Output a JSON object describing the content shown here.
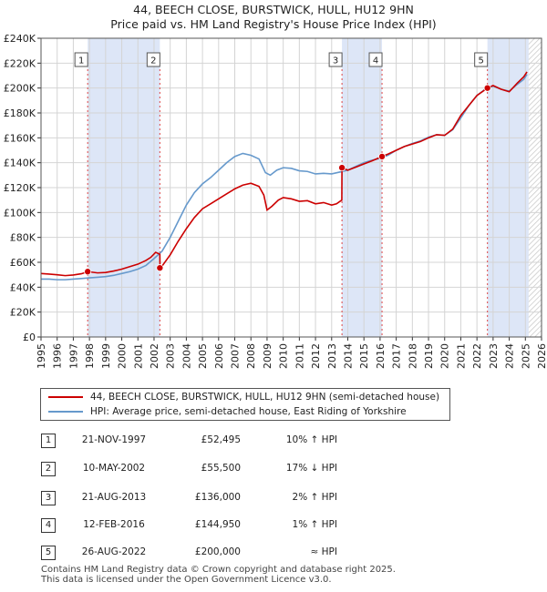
{
  "chart_data": {
    "type": "line",
    "title": "44, BEECH CLOSE, BURSTWICK, HULL, HU12 9HN",
    "subtitle": "Price paid vs. HM Land Registry's House Price Index (HPI)",
    "xlim": [
      1995,
      2026
    ],
    "ylim": [
      0,
      240000
    ],
    "x_ticks": [
      1995,
      1996,
      1997,
      1998,
      1999,
      2000,
      2001,
      2002,
      2003,
      2004,
      2005,
      2006,
      2007,
      2008,
      2009,
      2010,
      2011,
      2012,
      2013,
      2014,
      2015,
      2016,
      2017,
      2018,
      2019,
      2020,
      2021,
      2022,
      2023,
      2024,
      2025,
      2026
    ],
    "y_ticks": [
      {
        "value": 0,
        "label": "£0"
      },
      {
        "value": 20000,
        "label": "£20K"
      },
      {
        "value": 40000,
        "label": "£40K"
      },
      {
        "value": 60000,
        "label": "£60K"
      },
      {
        "value": 80000,
        "label": "£80K"
      },
      {
        "value": 100000,
        "label": "£100K"
      },
      {
        "value": 120000,
        "label": "£120K"
      },
      {
        "value": 140000,
        "label": "£140K"
      },
      {
        "value": 160000,
        "label": "£160K"
      },
      {
        "value": 180000,
        "label": "£180K"
      },
      {
        "value": 200000,
        "label": "£200K"
      },
      {
        "value": 220000,
        "label": "£220K"
      },
      {
        "value": 240000,
        "label": "£240K"
      }
    ],
    "grid": true,
    "colors": {
      "property": "#cc0000",
      "hpi": "#6699cc",
      "shade": "#dde6f7",
      "future": "#c8c8c8"
    },
    "series": [
      {
        "name": "44, BEECH CLOSE, BURSTWICK, HULL, HU12 9HN (semi-detached house)",
        "points": [
          [
            1995,
            51000
          ],
          [
            1995.5,
            50500
          ],
          [
            1996,
            50000
          ],
          [
            1996.5,
            49300
          ],
          [
            1997,
            49800
          ],
          [
            1997.5,
            50800
          ],
          [
            1997.9,
            52495
          ],
          [
            1998.5,
            51500
          ],
          [
            1999,
            51800
          ],
          [
            1999.5,
            53000
          ],
          [
            2000,
            54500
          ],
          [
            2000.5,
            56500
          ],
          [
            2001,
            58500
          ],
          [
            2001.5,
            61500
          ],
          [
            2001.8,
            64000
          ],
          [
            2002.1,
            68000
          ],
          [
            2002.36,
            66500
          ],
          [
            2002.37,
            55500
          ],
          [
            2002.5,
            57000
          ],
          [
            2003,
            66000
          ],
          [
            2003.5,
            77000
          ],
          [
            2004,
            87000
          ],
          [
            2004.5,
            96000
          ],
          [
            2005,
            103000
          ],
          [
            2005.5,
            107000
          ],
          [
            2006,
            111000
          ],
          [
            2006.5,
            115000
          ],
          [
            2007,
            119000
          ],
          [
            2007.5,
            122000
          ],
          [
            2008,
            123500
          ],
          [
            2008.5,
            121000
          ],
          [
            2008.8,
            114000
          ],
          [
            2009,
            102000
          ],
          [
            2009.3,
            105000
          ],
          [
            2009.7,
            110000
          ],
          [
            2010,
            112000
          ],
          [
            2010.5,
            111000
          ],
          [
            2011,
            109000
          ],
          [
            2011.5,
            109500
          ],
          [
            2012,
            107000
          ],
          [
            2012.5,
            108000
          ],
          [
            2013,
            106000
          ],
          [
            2013.3,
            107000
          ],
          [
            2013.63,
            110000
          ],
          [
            2013.64,
            136000
          ],
          [
            2014,
            134000
          ],
          [
            2014.5,
            136500
          ],
          [
            2015,
            139000
          ],
          [
            2015.5,
            141500
          ],
          [
            2016.12,
            144950
          ],
          [
            2016.5,
            147000
          ],
          [
            2017,
            150000
          ],
          [
            2017.5,
            153000
          ],
          [
            2018,
            155000
          ],
          [
            2018.5,
            157000
          ],
          [
            2019,
            160000
          ],
          [
            2019.5,
            162500
          ],
          [
            2020,
            162000
          ],
          [
            2020.5,
            167000
          ],
          [
            2021,
            178000
          ],
          [
            2021.5,
            186000
          ],
          [
            2022,
            194000
          ],
          [
            2022.65,
            200000
          ],
          [
            2023,
            202000
          ],
          [
            2023.5,
            199000
          ],
          [
            2024,
            197000
          ],
          [
            2024.5,
            204000
          ],
          [
            2024.9,
            209000
          ],
          [
            2025.1,
            213000
          ]
        ]
      },
      {
        "name": "HPI: Average price, semi-detached house, East Riding of Yorkshire",
        "points": [
          [
            1995,
            46500
          ],
          [
            1995.5,
            46500
          ],
          [
            1996,
            46000
          ],
          [
            1996.5,
            46000
          ],
          [
            1997,
            46500
          ],
          [
            1997.5,
            47000
          ],
          [
            1998,
            47500
          ],
          [
            1998.5,
            48000
          ],
          [
            1999,
            48500
          ],
          [
            1999.5,
            49500
          ],
          [
            2000,
            51000
          ],
          [
            2000.5,
            52500
          ],
          [
            2001,
            54500
          ],
          [
            2001.5,
            57500
          ],
          [
            2002,
            63000
          ],
          [
            2002.5,
            69000
          ],
          [
            2003,
            80000
          ],
          [
            2003.5,
            93000
          ],
          [
            2004,
            106000
          ],
          [
            2004.5,
            116000
          ],
          [
            2005,
            123000
          ],
          [
            2005.5,
            128000
          ],
          [
            2006,
            134000
          ],
          [
            2006.5,
            140000
          ],
          [
            2007,
            145000
          ],
          [
            2007.5,
            147500
          ],
          [
            2008,
            146000
          ],
          [
            2008.5,
            143000
          ],
          [
            2008.9,
            132000
          ],
          [
            2009.2,
            130000
          ],
          [
            2009.6,
            134000
          ],
          [
            2010,
            136000
          ],
          [
            2010.5,
            135500
          ],
          [
            2011,
            133500
          ],
          [
            2011.5,
            133000
          ],
          [
            2012,
            131000
          ],
          [
            2012.5,
            131500
          ],
          [
            2013,
            131000
          ],
          [
            2013.5,
            132500
          ],
          [
            2014,
            134000
          ],
          [
            2014.5,
            137000
          ],
          [
            2015,
            140000
          ],
          [
            2015.5,
            142000
          ],
          [
            2016,
            143500
          ],
          [
            2016.5,
            146000
          ],
          [
            2017,
            150000
          ],
          [
            2017.5,
            153000
          ],
          [
            2018,
            155500
          ],
          [
            2018.5,
            157500
          ],
          [
            2019,
            160500
          ],
          [
            2019.5,
            162500
          ],
          [
            2020,
            162000
          ],
          [
            2020.5,
            166500
          ],
          [
            2021,
            176000
          ],
          [
            2021.5,
            186000
          ],
          [
            2022,
            194000
          ],
          [
            2022.5,
            199000
          ],
          [
            2023,
            201500
          ],
          [
            2023.5,
            199000
          ],
          [
            2024,
            197500
          ],
          [
            2024.5,
            203000
          ],
          [
            2024.9,
            207000
          ],
          [
            2025.1,
            211000
          ]
        ]
      }
    ],
    "sales": [
      {
        "n": "1",
        "x": 1997.89,
        "price": 52495
      },
      {
        "n": "2",
        "x": 2002.36,
        "price": 55500
      },
      {
        "n": "3",
        "x": 2013.64,
        "price": 136000
      },
      {
        "n": "4",
        "x": 2016.12,
        "price": 144950
      },
      {
        "n": "5",
        "x": 2022.65,
        "price": 200000
      }
    ],
    "shaded_ranges": [
      [
        1997.89,
        2002.36
      ],
      [
        2013.64,
        2016.12
      ],
      [
        2022.65,
        2025.2
      ]
    ],
    "future_from": 2025.2
  },
  "title": "44, BEECH CLOSE, BURSTWICK, HULL, HU12 9HN",
  "subtitle": "Price paid vs. HM Land Registry's House Price Index (HPI)",
  "legend": {
    "property": "44, BEECH CLOSE, BURSTWICK, HULL, HU12 9HN (semi-detached house)",
    "hpi": "HPI: Average price, semi-detached house, East Riding of Yorkshire"
  },
  "table": [
    {
      "n": "1",
      "date": "21-NOV-1997",
      "price": "£52,495",
      "hpi": "10% ↑ HPI"
    },
    {
      "n": "2",
      "date": "10-MAY-2002",
      "price": "£55,500",
      "hpi": "17% ↓ HPI"
    },
    {
      "n": "3",
      "date": "21-AUG-2013",
      "price": "£136,000",
      "hpi": "2% ↑ HPI"
    },
    {
      "n": "4",
      "date": "12-FEB-2016",
      "price": "£144,950",
      "hpi": "1% ↑ HPI"
    },
    {
      "n": "5",
      "date": "26-AUG-2022",
      "price": "£200,000",
      "hpi": "≈ HPI"
    }
  ],
  "footer": {
    "line1": "Contains HM Land Registry data © Crown copyright and database right 2025.",
    "line2": "This data is licensed under the Open Government Licence v3.0."
  }
}
